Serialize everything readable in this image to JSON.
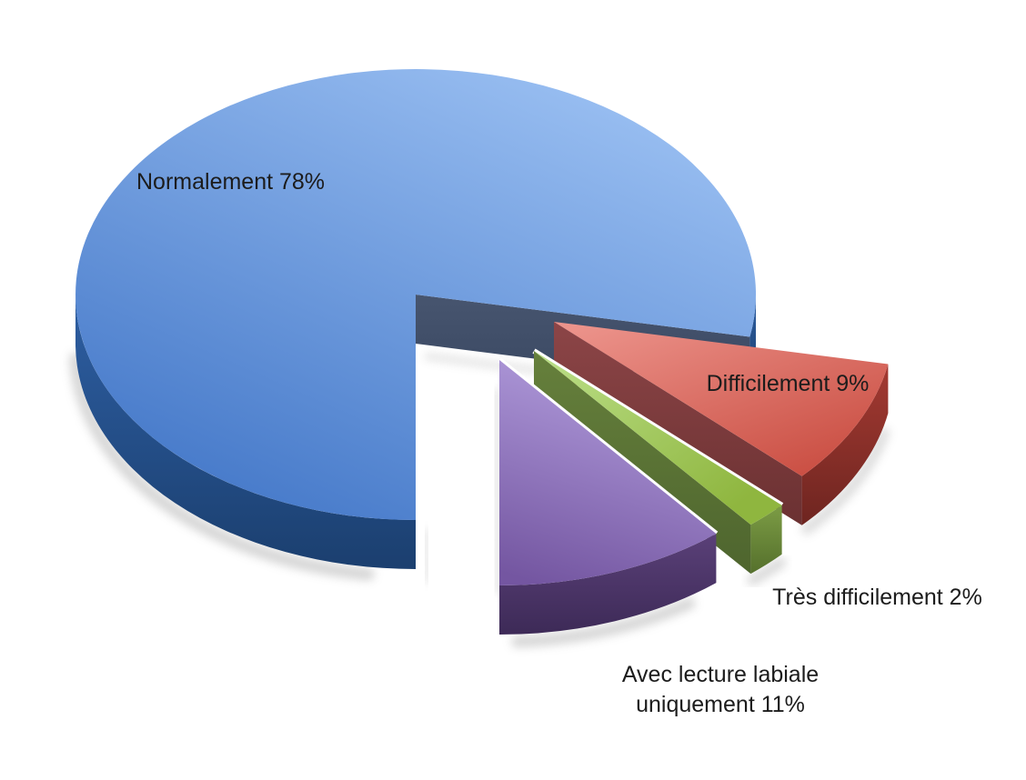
{
  "page": {
    "background": "#ffffff",
    "text_color": "#1c1c1c"
  },
  "chart_data": {
    "type": "pie",
    "style": "3d-exploded",
    "title": "",
    "unit": "%",
    "legend_position": "none",
    "grid": false,
    "start_angle_deg": 180,
    "direction": "clockwise",
    "total": 100,
    "categories": [
      "Normalement",
      "Difficilement",
      "Très difficilement",
      "Avec lecture labiale uniquement"
    ],
    "values": [
      78,
      9,
      2,
      11
    ],
    "slices": [
      {
        "label": "Normalement",
        "value": 78,
        "text": "Normalement 78%",
        "exploded": false,
        "color": "#7FA8E4",
        "colors": {
          "top": [
            "#96BCF0",
            "#4377C8"
          ],
          "side": [
            "#2E5FA3",
            "#1B3F6F"
          ],
          "cut": [
            "#47556F",
            "#3A4862"
          ]
        }
      },
      {
        "label": "Difficilement",
        "value": 9,
        "text": "Difficilement 9%",
        "exploded": true,
        "color": "#DB6A60",
        "colors": {
          "top": [
            "#EC938B",
            "#C84A3E"
          ],
          "side": [
            "#A43A32",
            "#6E2520"
          ],
          "cut": [
            "#8C4547",
            "#6B3132"
          ]
        }
      },
      {
        "label": "Très difficilement",
        "value": 2,
        "text": "Très difficilement 2%",
        "exploded": true,
        "color": "#A5CB61",
        "colors": {
          "top": [
            "#BCE08A",
            "#8FB63F"
          ],
          "side": [
            "#7C9C45",
            "#55702C"
          ],
          "cut": [
            "#66803C",
            "#4E652E"
          ]
        }
      },
      {
        "label": "Avec lecture labiale uniquement",
        "value": 11,
        "text": "Avec lecture labiale uniquement 11%",
        "exploded": true,
        "color": "#9478BF",
        "colors": {
          "top": [
            "#B19CDC",
            "#7456A1"
          ],
          "side": [
            "#5A4078",
            "#3D2A57"
          ],
          "cut": [
            "#4A3366",
            "#3A2750"
          ]
        }
      }
    ]
  }
}
